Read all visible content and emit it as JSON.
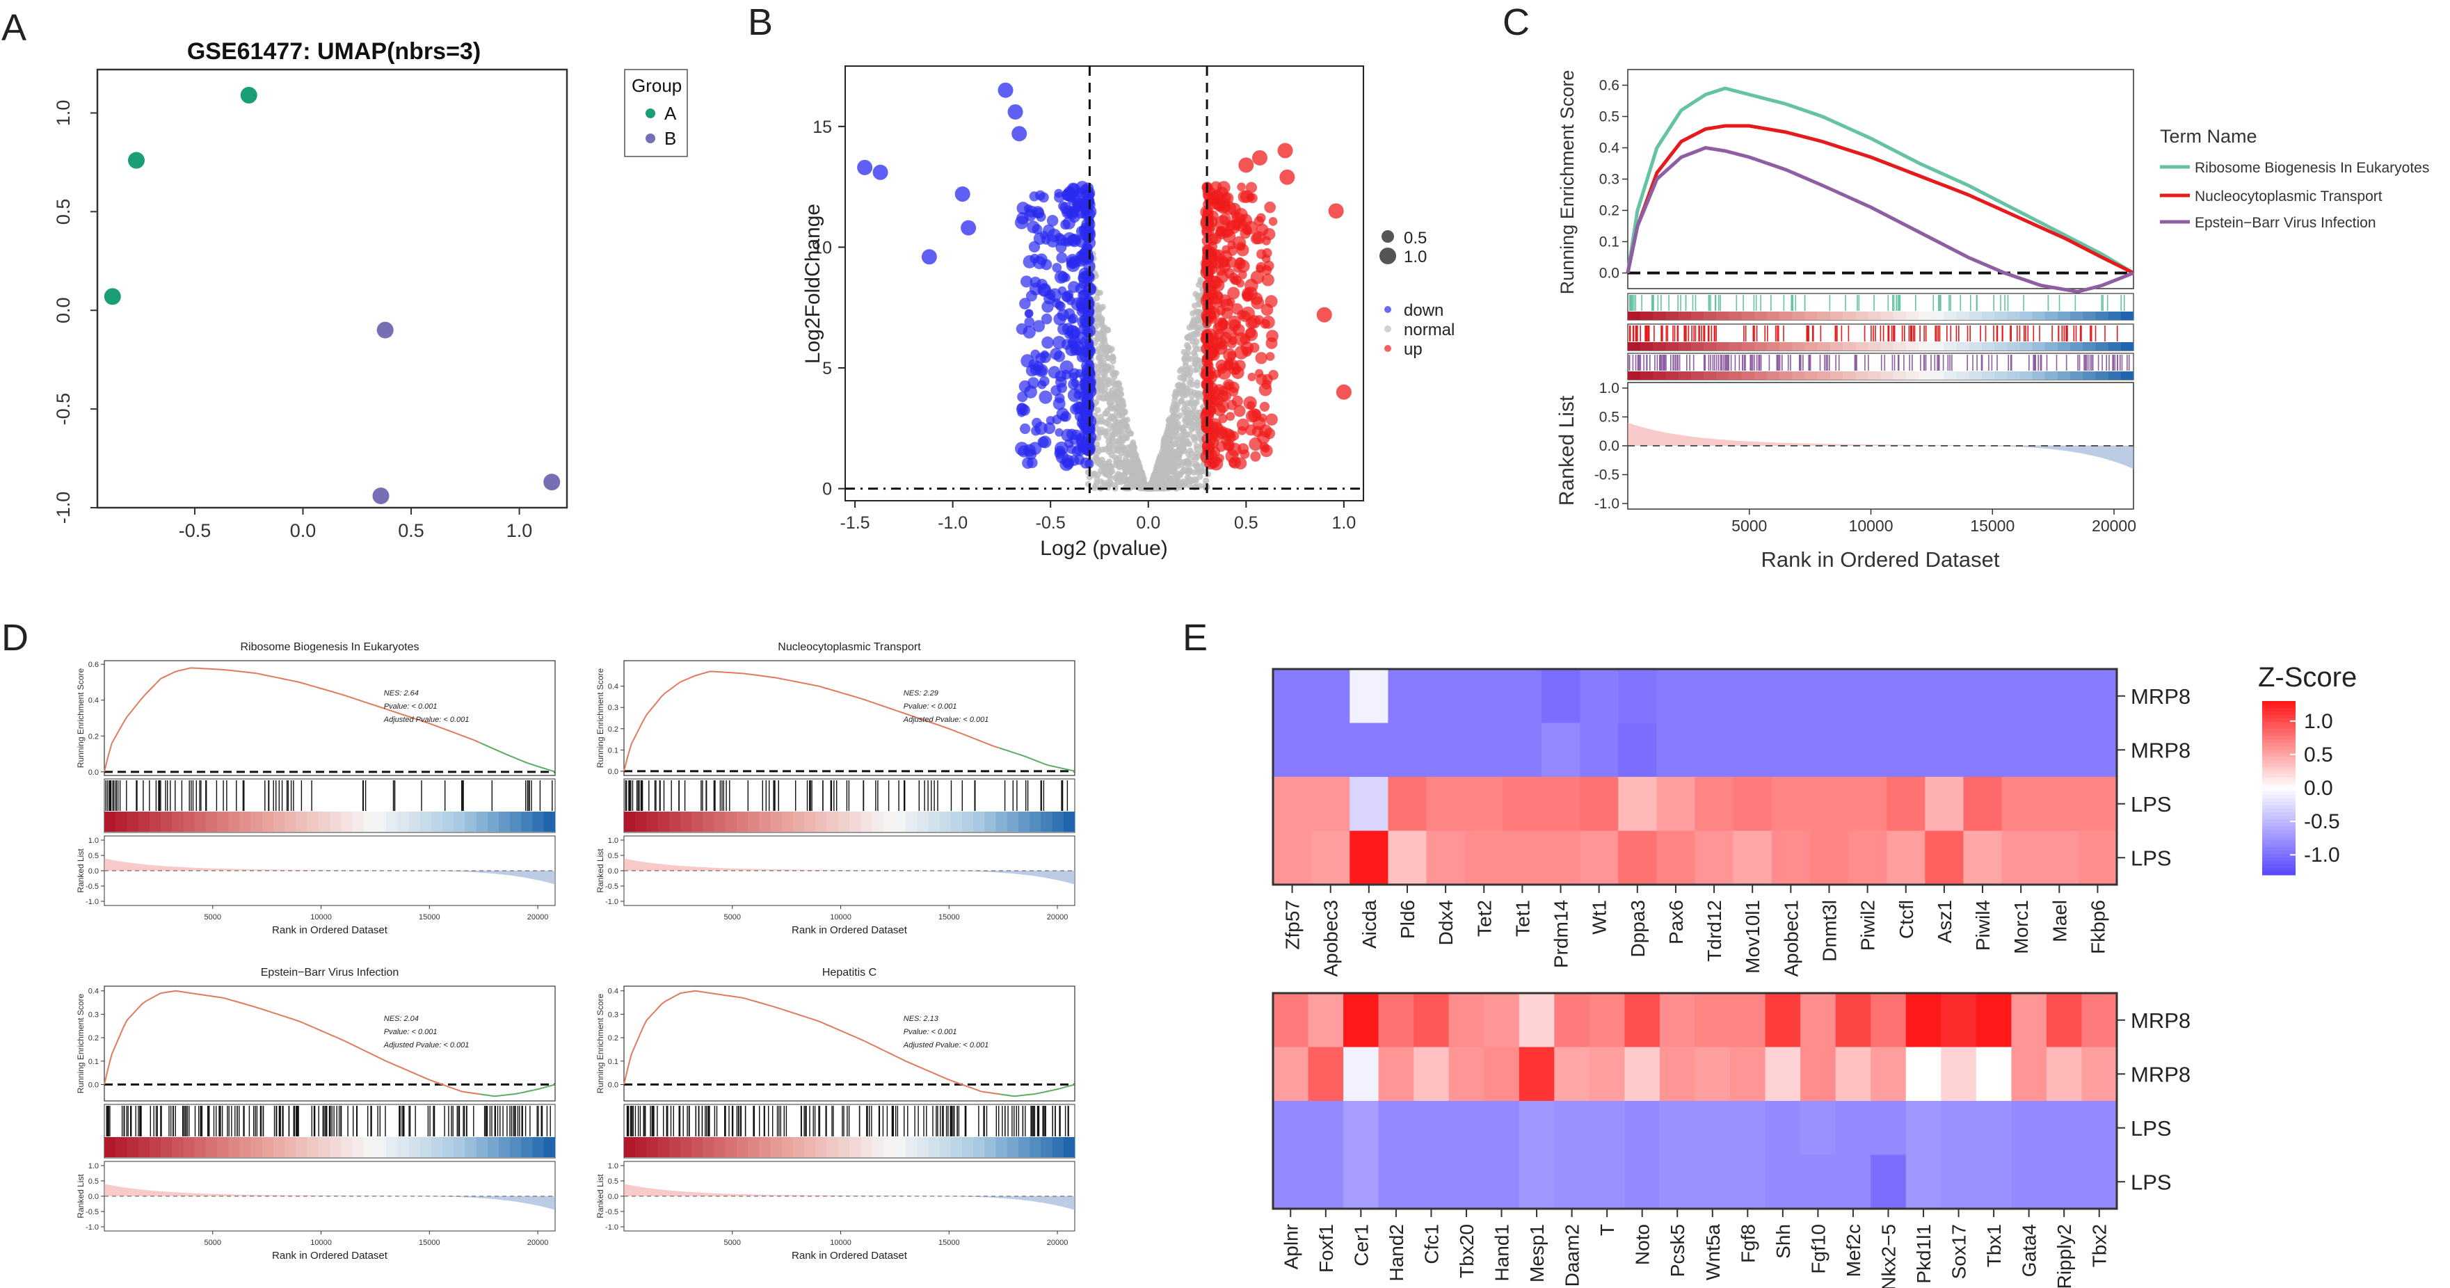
{
  "panel_letters": {
    "A": "A",
    "B": "B",
    "C": "C",
    "D": "D",
    "E": "E"
  },
  "colors": {
    "group_a": "#1b9e77",
    "group_b": "#7570b3",
    "down": "#2a2af0",
    "normal": "#bdbdbd",
    "up": "#f01c1c",
    "ribosome": "#66c2a5",
    "nucleo": "#e41a1c",
    "ebv": "#8e5ea2",
    "curve": "#e07a5f",
    "curve_tail": "#5aae61",
    "heat_low": "#5b4bff",
    "heat_mid": "#ffffff",
    "heat_high": "#ff1a1a"
  },
  "chart_data": [
    {
      "panel": "A",
      "type": "scatter",
      "title": "GSE61477: UMAP(nbrs=3)",
      "xlim": [
        -0.95,
        1.22
      ],
      "ylim": [
        -1.0,
        1.22
      ],
      "xticks": [
        -0.5,
        0.0,
        0.5,
        1.0
      ],
      "yticks": [
        -1.0,
        -0.5,
        0.0,
        0.5,
        1.0
      ],
      "xtick_labels": [
        "-0.5",
        "0.0",
        "0.5",
        "1.0"
      ],
      "ytick_labels": [
        "-1.0",
        "-0.5",
        "0.0",
        "0.5",
        "1.0"
      ],
      "legend": {
        "title": "Group",
        "entries": [
          {
            "label": "A",
            "color": "#1b9e77"
          },
          {
            "label": "B",
            "color": "#7570b3"
          }
        ]
      },
      "series": [
        {
          "name": "A",
          "points": [
            [
              -0.25,
              1.09
            ],
            [
              -0.77,
              0.76
            ],
            [
              -0.88,
              0.07
            ]
          ]
        },
        {
          "name": "B",
          "points": [
            [
              0.38,
              -0.1
            ],
            [
              1.15,
              -0.87
            ],
            [
              0.36,
              -0.94
            ]
          ]
        }
      ]
    },
    {
      "panel": "B",
      "type": "scatter",
      "subtype": "volcano",
      "xlabel": "Log2 (pvalue)",
      "ylabel": "Log2FoldChange",
      "xlim": [
        -1.55,
        1.1
      ],
      "ylim": [
        -0.5,
        17.5
      ],
      "xticks": [
        -1.5,
        -1.0,
        -0.5,
        0.0,
        0.5,
        1.0
      ],
      "yticks": [
        0,
        5,
        10,
        15
      ],
      "xtick_labels": [
        "-1.5",
        "-1.0",
        "-0.5",
        "0.0",
        "0.5",
        "1.0"
      ],
      "ytick_labels": [
        "0",
        "5",
        "10",
        "15"
      ],
      "vlines": [
        -0.3,
        0.3
      ],
      "hline": 0,
      "size_legend": [
        "0.5",
        "1.0"
      ],
      "color_legend": [
        {
          "label": "down",
          "color": "#2a2af0"
        },
        {
          "label": "normal",
          "color": "#bdbdbd"
        },
        {
          "label": "up",
          "color": "#f01c1c"
        }
      ],
      "notable_points": [
        [
          -1.45,
          13.3
        ],
        [
          -1.37,
          13.1
        ],
        [
          -1.12,
          9.6
        ],
        [
          -0.95,
          12.2
        ],
        [
          -0.73,
          16.5
        ],
        [
          -0.68,
          15.6
        ],
        [
          -0.66,
          14.7
        ],
        [
          -0.92,
          10.8
        ],
        [
          0.38,
          11.0
        ],
        [
          0.5,
          13.4
        ],
        [
          0.57,
          13.7
        ],
        [
          0.71,
          12.9
        ],
        [
          0.7,
          14.0
        ],
        [
          0.96,
          11.5
        ],
        [
          1.0,
          4.0
        ],
        [
          0.9,
          7.2
        ]
      ]
    },
    {
      "panel": "C",
      "type": "line",
      "subtype": "gsea",
      "xlabel": "Rank in Ordered Dataset",
      "ylabel": "Running Enrichment Score",
      "ranked_label": "Ranked List",
      "xlim": [
        0,
        20800
      ],
      "ylim": [
        -0.05,
        0.65
      ],
      "xticks": [
        5000,
        10000,
        15000,
        20000
      ],
      "xtick_labels": [
        "5000",
        "10000",
        "15000",
        "20000"
      ],
      "yticks": [
        0.0,
        0.1,
        0.2,
        0.3,
        0.4,
        0.5,
        0.6
      ],
      "ytick_labels": [
        "0.0",
        "0.1",
        "0.2",
        "0.3",
        "0.4",
        "0.5",
        "0.6"
      ],
      "ranked_ylim": [
        -1.0,
        1.0
      ],
      "ranked_ticks": [
        "1.0",
        "0.5",
        "0.0",
        "-0.5",
        "-1.0"
      ],
      "legend_title": "Term Name",
      "series": [
        {
          "name": "Ribosome Biogenesis In Eukaryotes",
          "color": "#66c2a5",
          "x": [
            0,
            400,
            1200,
            2200,
            3200,
            4000,
            5000,
            6500,
            8000,
            10000,
            12000,
            14000,
            16000,
            18000,
            19500,
            20800
          ],
          "y": [
            0.0,
            0.2,
            0.4,
            0.52,
            0.57,
            0.59,
            0.57,
            0.54,
            0.5,
            0.43,
            0.35,
            0.28,
            0.2,
            0.12,
            0.06,
            0.0
          ]
        },
        {
          "name": "Nucleocytoplasmic Transport",
          "color": "#e41a1c",
          "x": [
            0,
            400,
            1200,
            2200,
            3200,
            4000,
            5000,
            6500,
            8000,
            10000,
            12000,
            14000,
            16000,
            18000,
            19500,
            20800
          ],
          "y": [
            0.0,
            0.15,
            0.32,
            0.42,
            0.46,
            0.47,
            0.47,
            0.45,
            0.42,
            0.37,
            0.31,
            0.25,
            0.18,
            0.11,
            0.05,
            0.0
          ]
        },
        {
          "name": "Epstein−Barr Virus Infection",
          "color": "#8e5ea2",
          "x": [
            0,
            400,
            1200,
            2200,
            3200,
            4000,
            5000,
            6500,
            8000,
            10000,
            12000,
            14000,
            15500,
            17000,
            18500,
            19500,
            20800
          ],
          "y": [
            0.0,
            0.15,
            0.3,
            0.37,
            0.4,
            0.39,
            0.37,
            0.33,
            0.28,
            0.21,
            0.13,
            0.05,
            0.0,
            -0.04,
            -0.06,
            -0.04,
            0.0
          ]
        }
      ]
    },
    {
      "panel": "D",
      "type": "line",
      "subtype": "gsea-grid",
      "xlabel": "Rank in Ordered Dataset",
      "ylabel": "Running Enrichment Score",
      "ranked_label": "Ranked List",
      "xtick_labels": [
        "5000",
        "10000",
        "15000",
        "20000"
      ],
      "ranked_ticks": [
        "1.0",
        "0.5",
        "0.0",
        "-0.5",
        "-1.0"
      ],
      "subplots": [
        {
          "title": "Ribosome Biogenesis In Eukaryotes",
          "nes": "NES: 2.64",
          "pvalue": "Pvalue: < 0.001",
          "adj": "Adjusted Pvalue: < 0.001",
          "ylim": [
            -0.02,
            0.62
          ],
          "yticks": [
            0.0,
            0.2,
            0.4,
            0.6
          ],
          "ytick_labels": [
            "0.0",
            "0.2",
            "0.4",
            "0.6"
          ],
          "x": [
            0,
            300,
            1000,
            1800,
            2600,
            3300,
            4000,
            5500,
            7000,
            9000,
            11000,
            13000,
            15000,
            17000,
            18500,
            19500,
            20800
          ],
          "y": [
            0.0,
            0.15,
            0.3,
            0.42,
            0.52,
            0.56,
            0.58,
            0.57,
            0.55,
            0.5,
            0.43,
            0.35,
            0.27,
            0.18,
            0.1,
            0.05,
            0.0
          ]
        },
        {
          "title": "Nucleocytoplasmic Transport",
          "nes": "NES: 2.29",
          "pvalue": "Pvalue: < 0.001",
          "adj": "Adjusted Pvalue: < 0.001",
          "ylim": [
            -0.02,
            0.52
          ],
          "yticks": [
            0.0,
            0.1,
            0.2,
            0.3,
            0.4
          ],
          "ytick_labels": [
            "0.0",
            "0.1",
            "0.2",
            "0.3",
            "0.4"
          ],
          "x": [
            0,
            300,
            1000,
            1800,
            2600,
            3300,
            4000,
            5500,
            7000,
            9000,
            11000,
            13000,
            15000,
            17000,
            18500,
            19500,
            20800
          ],
          "y": [
            0.0,
            0.12,
            0.26,
            0.36,
            0.42,
            0.45,
            0.47,
            0.46,
            0.44,
            0.4,
            0.34,
            0.27,
            0.2,
            0.12,
            0.07,
            0.03,
            0.0
          ]
        },
        {
          "title": "Epstein−Barr Virus Infection",
          "nes": "NES: 2.04",
          "pvalue": "Pvalue: < 0.001",
          "adj": "Adjusted Pvalue: < 0.001",
          "ylim": [
            -0.07,
            0.42
          ],
          "yticks": [
            0.0,
            0.1,
            0.2,
            0.3,
            0.4
          ],
          "ytick_labels": [
            "0.0",
            "0.1",
            "0.2",
            "0.3",
            "0.4"
          ],
          "x": [
            0,
            300,
            1000,
            1800,
            2600,
            3300,
            4000,
            5500,
            7000,
            9000,
            11000,
            13000,
            15000,
            16500,
            18000,
            19000,
            20000,
            20800
          ],
          "y": [
            0.0,
            0.12,
            0.27,
            0.35,
            0.39,
            0.4,
            0.39,
            0.37,
            0.33,
            0.27,
            0.19,
            0.1,
            0.02,
            -0.03,
            -0.05,
            -0.04,
            -0.02,
            0.0
          ]
        },
        {
          "title": "Hepatitis C",
          "nes": "NES: 2.13",
          "pvalue": "Pvalue: < 0.001",
          "adj": "Adjusted Pvalue: < 0.001",
          "ylim": [
            -0.07,
            0.42
          ],
          "yticks": [
            0.0,
            0.1,
            0.2,
            0.3,
            0.4
          ],
          "ytick_labels": [
            "0.0",
            "0.1",
            "0.2",
            "0.3",
            "0.4"
          ],
          "x": [
            0,
            300,
            1000,
            1800,
            2600,
            3300,
            4000,
            5500,
            7000,
            9000,
            11000,
            13000,
            15000,
            16500,
            18000,
            19000,
            20000,
            20800
          ],
          "y": [
            0.0,
            0.12,
            0.27,
            0.35,
            0.39,
            0.4,
            0.39,
            0.37,
            0.33,
            0.27,
            0.19,
            0.1,
            0.02,
            -0.03,
            -0.05,
            -0.04,
            -0.02,
            0.0
          ]
        }
      ]
    },
    {
      "panel": "E",
      "type": "heatmap",
      "legend_title": "Z-Score",
      "legend_ticks": [
        "1.0",
        "0.5",
        "0.0",
        "-0.5",
        "-1.0"
      ],
      "legend_values": [
        1.0,
        0.5,
        0.0,
        -0.5,
        -1.0
      ],
      "heatmaps": [
        {
          "rows": [
            "MRP8",
            "MRP8",
            "LPS",
            "LPS"
          ],
          "cols": [
            "Zfp57",
            "Apobec3",
            "Aicda",
            "Pld6",
            "Ddx4",
            "Tet2",
            "Tet1",
            "Prdm14",
            "Wt1",
            "Dppa3",
            "Pax6",
            "Tdrd12",
            "Mov10l1",
            "Apobec1",
            "Dnmt3l",
            "Piwil2",
            "Ctcfl",
            "Asz1",
            "Piwil4",
            "Morc1",
            "Mael",
            "Fkbp6"
          ],
          "values": [
            [
              -0.95,
              -0.95,
              -0.1,
              -0.95,
              -0.95,
              -0.95,
              -0.95,
              -1.05,
              -0.95,
              -1.0,
              -0.95,
              -0.95,
              -0.95,
              -0.95,
              -0.95,
              -0.95,
              -0.95,
              -0.95,
              -0.95,
              -0.95,
              -0.95,
              -0.95
            ],
            [
              -0.95,
              -0.95,
              -0.95,
              -0.95,
              -0.95,
              -0.95,
              -0.95,
              -0.85,
              -0.95,
              -1.05,
              -0.95,
              -0.95,
              -0.95,
              -0.95,
              -0.95,
              -0.95,
              -0.95,
              -0.95,
              -0.95,
              -0.95,
              -0.95,
              -0.95
            ],
            [
              0.6,
              0.6,
              -0.3,
              0.8,
              0.7,
              0.7,
              0.75,
              0.75,
              0.8,
              0.4,
              0.55,
              0.7,
              0.75,
              0.7,
              0.7,
              0.7,
              0.8,
              0.45,
              0.85,
              0.7,
              0.7,
              0.7
            ],
            [
              0.6,
              0.55,
              1.3,
              0.35,
              0.6,
              0.65,
              0.65,
              0.65,
              0.6,
              0.8,
              0.7,
              0.6,
              0.5,
              0.65,
              0.7,
              0.65,
              0.55,
              0.9,
              0.5,
              0.6,
              0.6,
              0.65
            ]
          ]
        },
        {
          "rows": [
            "MRP8",
            "MRP8",
            "LPS",
            "LPS"
          ],
          "cols": [
            "Aplnr",
            "Foxf1",
            "Cer1",
            "Hand2",
            "Cfc1",
            "Tbx20",
            "Hand1",
            "Mesp1",
            "Daam2",
            "T",
            "Noto",
            "Pcsk5",
            "Wnt5a",
            "Fgf8",
            "Shh",
            "Fgf10",
            "Mef2c",
            "Nkx2−5",
            "Pkd1l1",
            "Sox17",
            "Tbx1",
            "Gata4",
            "Ripply2",
            "Tbx2"
          ],
          "values": [
            [
              0.75,
              0.55,
              1.4,
              0.8,
              0.95,
              0.65,
              0.6,
              0.25,
              0.75,
              0.7,
              1.0,
              0.65,
              0.7,
              0.7,
              1.1,
              0.65,
              1.05,
              0.8,
              1.3,
              1.2,
              1.35,
              0.6,
              1.0,
              0.75
            ],
            [
              0.55,
              0.9,
              -0.1,
              0.6,
              0.35,
              0.6,
              0.65,
              1.15,
              0.5,
              0.55,
              0.3,
              0.6,
              0.55,
              0.6,
              0.25,
              0.65,
              0.35,
              0.55,
              0.0,
              0.25,
              0.0,
              0.6,
              0.4,
              0.55
            ],
            [
              -0.85,
              -0.85,
              -0.7,
              -0.85,
              -0.85,
              -0.85,
              -0.85,
              -0.75,
              -0.8,
              -0.8,
              -0.85,
              -0.8,
              -0.8,
              -0.8,
              -0.85,
              -0.8,
              -0.85,
              -0.85,
              -0.75,
              -0.8,
              -0.8,
              -0.85,
              -0.85,
              -0.85
            ],
            [
              -0.85,
              -0.85,
              -0.7,
              -0.85,
              -0.85,
              -0.85,
              -0.85,
              -0.75,
              -0.8,
              -0.8,
              -0.85,
              -0.8,
              -0.8,
              -0.8,
              -0.85,
              -0.85,
              -0.85,
              -1.05,
              -0.75,
              -0.8,
              -0.8,
              -0.85,
              -0.85,
              -0.85
            ]
          ]
        }
      ]
    }
  ]
}
